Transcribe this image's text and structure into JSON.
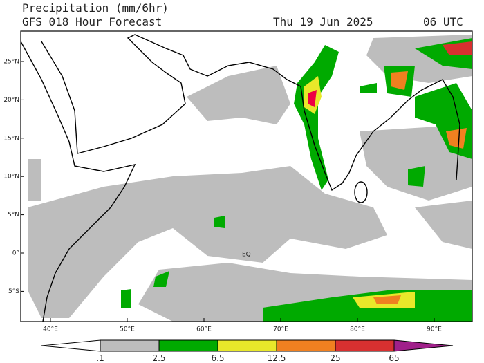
{
  "header": {
    "title": "Precipitation (mm/6hr)",
    "subtitle": "GFS 018 Hour Forecast",
    "date": "Thu 19 Jun 2025",
    "time": "06 UTC"
  },
  "map": {
    "lat_labels": [
      "25°N",
      "20°N",
      "15°N",
      "10°N",
      "5°N",
      "0°",
      "5°S"
    ],
    "lon_labels": [
      "40°E",
      "50°E",
      "60°E",
      "70°E",
      "80°E",
      "90°E"
    ],
    "equator_label": "EQ"
  },
  "legend": {
    "labels": [
      ".1",
      "2.5",
      "6.5",
      "12.5",
      "25",
      "65"
    ]
  }
}
